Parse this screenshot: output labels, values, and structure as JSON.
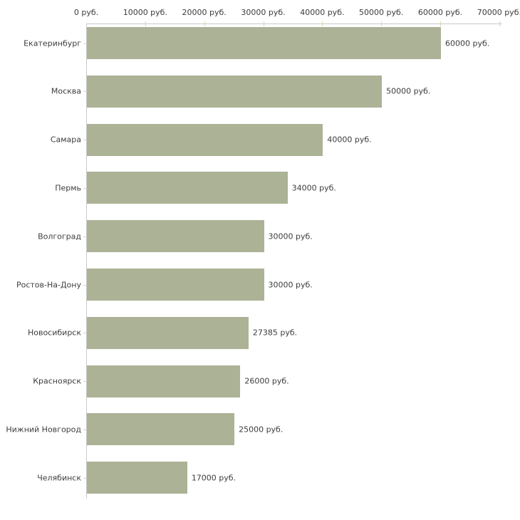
{
  "chart_data": {
    "type": "bar",
    "orientation": "horizontal",
    "title": "",
    "unit": "руб.",
    "categories": [
      "Екатеринбург",
      "Москва",
      "Самара",
      "Пермь",
      "Волгоград",
      "Ростов-На-Дону",
      "Новосибирск",
      "Красноярск",
      "Нижний Новгород",
      "Челябинск"
    ],
    "values": [
      60000,
      50000,
      40000,
      34000,
      30000,
      30000,
      27385,
      26000,
      25000,
      17000
    ],
    "value_labels": [
      "60000 руб.",
      "50000 руб.",
      "40000 руб.",
      "34000 руб.",
      "30000 руб.",
      "30000 руб.",
      "27385 руб.",
      "26000 руб.",
      "25000 руб.",
      "17000 руб."
    ],
    "x_ticks": [
      0,
      10000,
      20000,
      30000,
      40000,
      50000,
      60000,
      70000
    ],
    "x_tick_labels": [
      "0 руб.",
      "10000 руб.",
      "20000 руб.",
      "30000 руб.",
      "40000 руб.",
      "50000 руб.",
      "60000 руб.",
      "70000 руб."
    ],
    "xlim": [
      0,
      70500
    ],
    "grid": false,
    "legend": "none",
    "colors": {
      "bar": "#abb296",
      "axis": "#c9c9c9",
      "tick": "#d6d8b2",
      "text": "#3c3c3c",
      "background": "#ffffff"
    }
  }
}
